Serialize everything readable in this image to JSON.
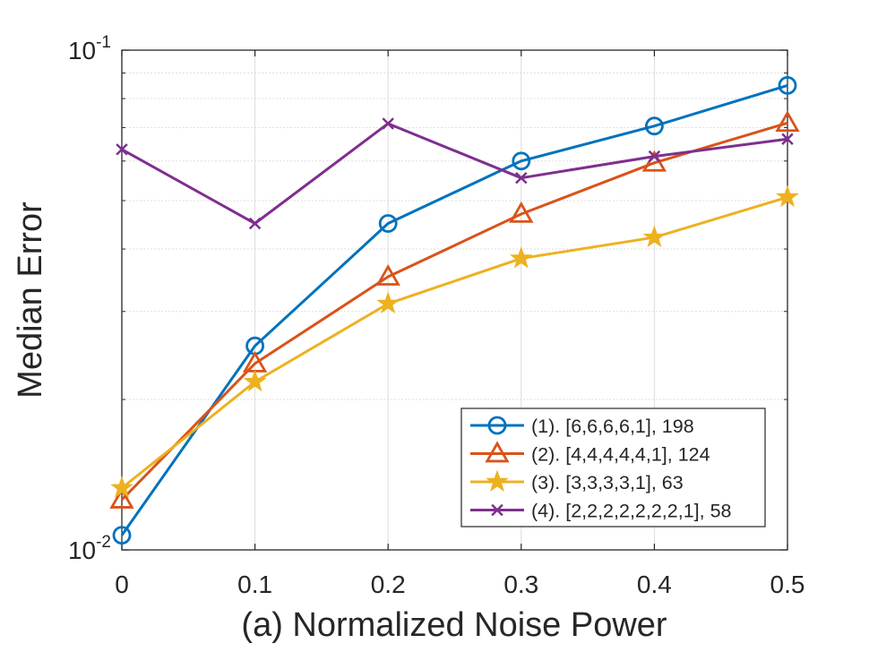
{
  "chart_data": {
    "type": "line",
    "title": "",
    "xlabel": "(a) Normalized Noise Power",
    "ylabel": "Median Error",
    "yscale": "log",
    "xlim": [
      0,
      0.5
    ],
    "ylim": [
      0.01,
      0.1
    ],
    "grid": true,
    "x_ticks": [
      "0",
      "0.1",
      "0.2",
      "0.3",
      "0.4",
      "0.5"
    ],
    "y_ticks": [
      {
        "base": "10",
        "exp": "-1"
      },
      {
        "base": "10",
        "exp": "-2"
      }
    ],
    "x": [
      0,
      0.1,
      0.2,
      0.3,
      0.4,
      0.5
    ],
    "legend_position": "bottom-right",
    "series": [
      {
        "name": "(1). [6,6,6,6,1], 198",
        "color": "#0072BD",
        "marker": "circle",
        "values": [
          0.0107,
          0.0256,
          0.045,
          0.06,
          0.0705,
          0.085
        ]
      },
      {
        "name": "(2). [4,4,4,4,4,1], 124",
        "color": "#D95319",
        "marker": "triangle",
        "values": [
          0.0126,
          0.0236,
          0.0352,
          0.047,
          0.0595,
          0.0715
        ]
      },
      {
        "name": "(3). [3,3,3,3,1], 63",
        "color": "#EDB120",
        "marker": "star",
        "values": [
          0.0133,
          0.0217,
          0.0311,
          0.0383,
          0.0422,
          0.0508
        ]
      },
      {
        "name": "(4). [2,2,2,2,2,2,2,1], 58",
        "color": "#7E2F8E",
        "marker": "x",
        "values": [
          0.0633,
          0.045,
          0.0713,
          0.0555,
          0.0613,
          0.0664
        ]
      }
    ]
  }
}
